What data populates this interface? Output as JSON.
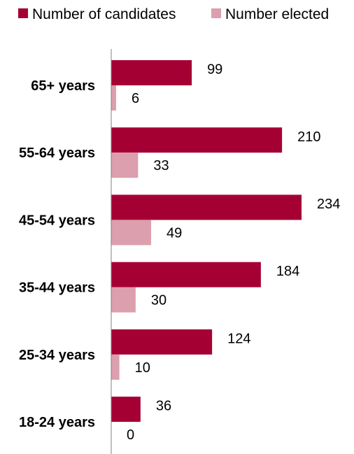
{
  "chart_data": {
    "type": "bar",
    "orientation": "horizontal",
    "categories": [
      "65+ years",
      "55-64 years",
      "45-54 years",
      "35-44 years",
      "25-34 years",
      "18-24 years"
    ],
    "series": [
      {
        "name": "Number of candidates",
        "values": [
          99,
          210,
          234,
          184,
          124,
          36
        ],
        "color": "#a50034"
      },
      {
        "name": "Number elected",
        "values": [
          6,
          33,
          49,
          30,
          10,
          0
        ],
        "color": "#dc9fad"
      }
    ],
    "xlim": [
      0,
      234
    ],
    "legend_position": "top",
    "grid": false,
    "title": "",
    "xlabel": "",
    "ylabel": ""
  }
}
